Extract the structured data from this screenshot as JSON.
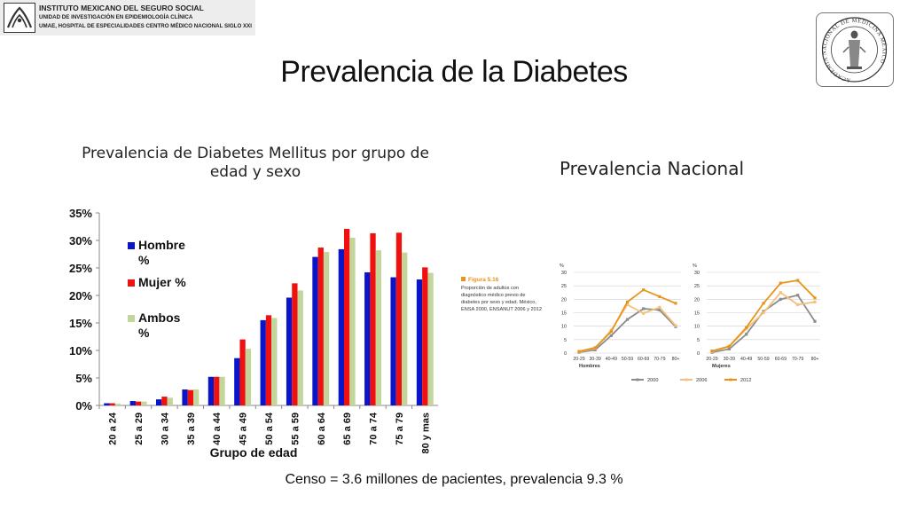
{
  "header": {
    "line1": "INSTITUTO MEXICANO DEL SEGURO SOCIAL",
    "line2": "UNIDAD DE INVESTIGACIÓN EN EPIDEMIOLOGÍA CLÍNICA",
    "line3": "UMAE, HOSPITAL DE ESPECIALIDADES CENTRO MÉDICO NACIONAL SIGLO XXI"
  },
  "seal": {
    "text": "ACADEMIA NACIONAL DE MEDICINA MÉXICO"
  },
  "slide_title": "Prevalencia de la Diabetes",
  "footer_note": "Censo = 3.6 millones de pacientes, prevalencia 9.3 %",
  "national_title": "Prevalencia Nacional",
  "colors": {
    "hombre": "#0a14c8",
    "mujer": "#f01010",
    "ambos": "#c2d69b",
    "y2000": "#8c8c8c",
    "y2006": "#f4c07a",
    "y2012": "#e8941a",
    "fig_accent": "#e8941a"
  },
  "chart_data": [
    {
      "type": "bar",
      "title": "Prevalencia de Diabetes Mellitus por grupo de edad y sexo",
      "xlabel": "Grupo de edad",
      "ylabel": "",
      "ylim": [
        0,
        35
      ],
      "yticks": [
        "0%",
        "5%",
        "10%",
        "15%",
        "20%",
        "25%",
        "30%",
        "35%"
      ],
      "yticks_values": [
        0,
        5,
        10,
        15,
        20,
        25,
        30,
        35
      ],
      "categories": [
        "20 a 24",
        "25 a 29",
        "30 a 34",
        "35 a 39",
        "40 a 44",
        "45 a 49",
        "50 a 54",
        "55 a 59",
        "60 a 64",
        "65 a 69",
        "70 a 74",
        "75 a 79",
        "80 y mas"
      ],
      "series": [
        {
          "name": "Hombre %",
          "values": [
            0.4,
            0.8,
            1.1,
            2.9,
            5.2,
            8.6,
            15.5,
            19.6,
            27.0,
            28.4,
            24.2,
            23.3,
            22.9
          ]
        },
        {
          "name": "Mujer %",
          "values": [
            0.4,
            0.7,
            1.6,
            2.8,
            5.2,
            12.0,
            16.4,
            22.2,
            28.7,
            32.1,
            31.3,
            31.4,
            25.1
          ]
        },
        {
          "name": "Ambos %",
          "values": [
            0.3,
            0.7,
            1.4,
            2.9,
            5.2,
            10.3,
            15.9,
            20.9,
            27.9,
            30.5,
            28.2,
            27.8,
            24.1
          ]
        }
      ],
      "legend": "left-inside",
      "grid": false
    },
    {
      "type": "line",
      "figure_label": "Figura 5.16",
      "caption": [
        "Proporción de adultos con",
        "diagnóstico médico previo de",
        "diabetes por sexo y edad. México,",
        "ENSA 2000, ENSANUT 2006 y 2012"
      ],
      "panels": [
        {
          "xlabel": "Hombres",
          "ylabel": "%",
          "ylim": [
            0,
            30
          ],
          "yticks": [
            "0",
            "5",
            "10",
            "15",
            "20",
            "25",
            "30"
          ],
          "yticks_values": [
            0,
            5,
            10,
            15,
            20,
            25,
            30
          ],
          "categories": [
            "20-29",
            "30-39",
            "40-49",
            "50-59",
            "60-69",
            "70-79",
            "80+"
          ],
          "series": [
            {
              "name": "2000",
              "values": [
                0.3,
                1.2,
                6.5,
                12.5,
                16.5,
                16.0,
                9.8
              ]
            },
            {
              "name": "2006",
              "values": [
                0.5,
                1.8,
                8.5,
                18.0,
                14.8,
                17.0,
                10.2
              ]
            },
            {
              "name": "2012",
              "values": [
                0.6,
                2.0,
                8.0,
                19.0,
                23.5,
                21.0,
                18.5
              ]
            }
          ]
        },
        {
          "xlabel": "Mujeres",
          "ylabel": "%",
          "ylim": [
            0,
            30
          ],
          "yticks": [
            "0",
            "5",
            "10",
            "15",
            "20",
            "25",
            "30"
          ],
          "yticks_values": [
            0,
            5,
            10,
            15,
            20,
            25,
            30
          ],
          "categories": [
            "20-29",
            "30-39",
            "40-49",
            "50-59",
            "60-69",
            "70-79",
            "80+"
          ],
          "series": [
            {
              "name": "2000",
              "values": [
                0.3,
                1.5,
                7.0,
                15.5,
                20.0,
                21.5,
                11.8
              ]
            },
            {
              "name": "2006",
              "values": [
                0.6,
                2.5,
                9.0,
                15.0,
                22.5,
                18.0,
                19.0
              ]
            },
            {
              "name": "2012",
              "values": [
                0.8,
                2.5,
                9.5,
                18.5,
                26.0,
                27.0,
                20.5
              ]
            }
          ]
        }
      ],
      "legend_entries": [
        "2000",
        "2006",
        "2012"
      ],
      "legend": "bottom-center",
      "grid": true
    }
  ]
}
